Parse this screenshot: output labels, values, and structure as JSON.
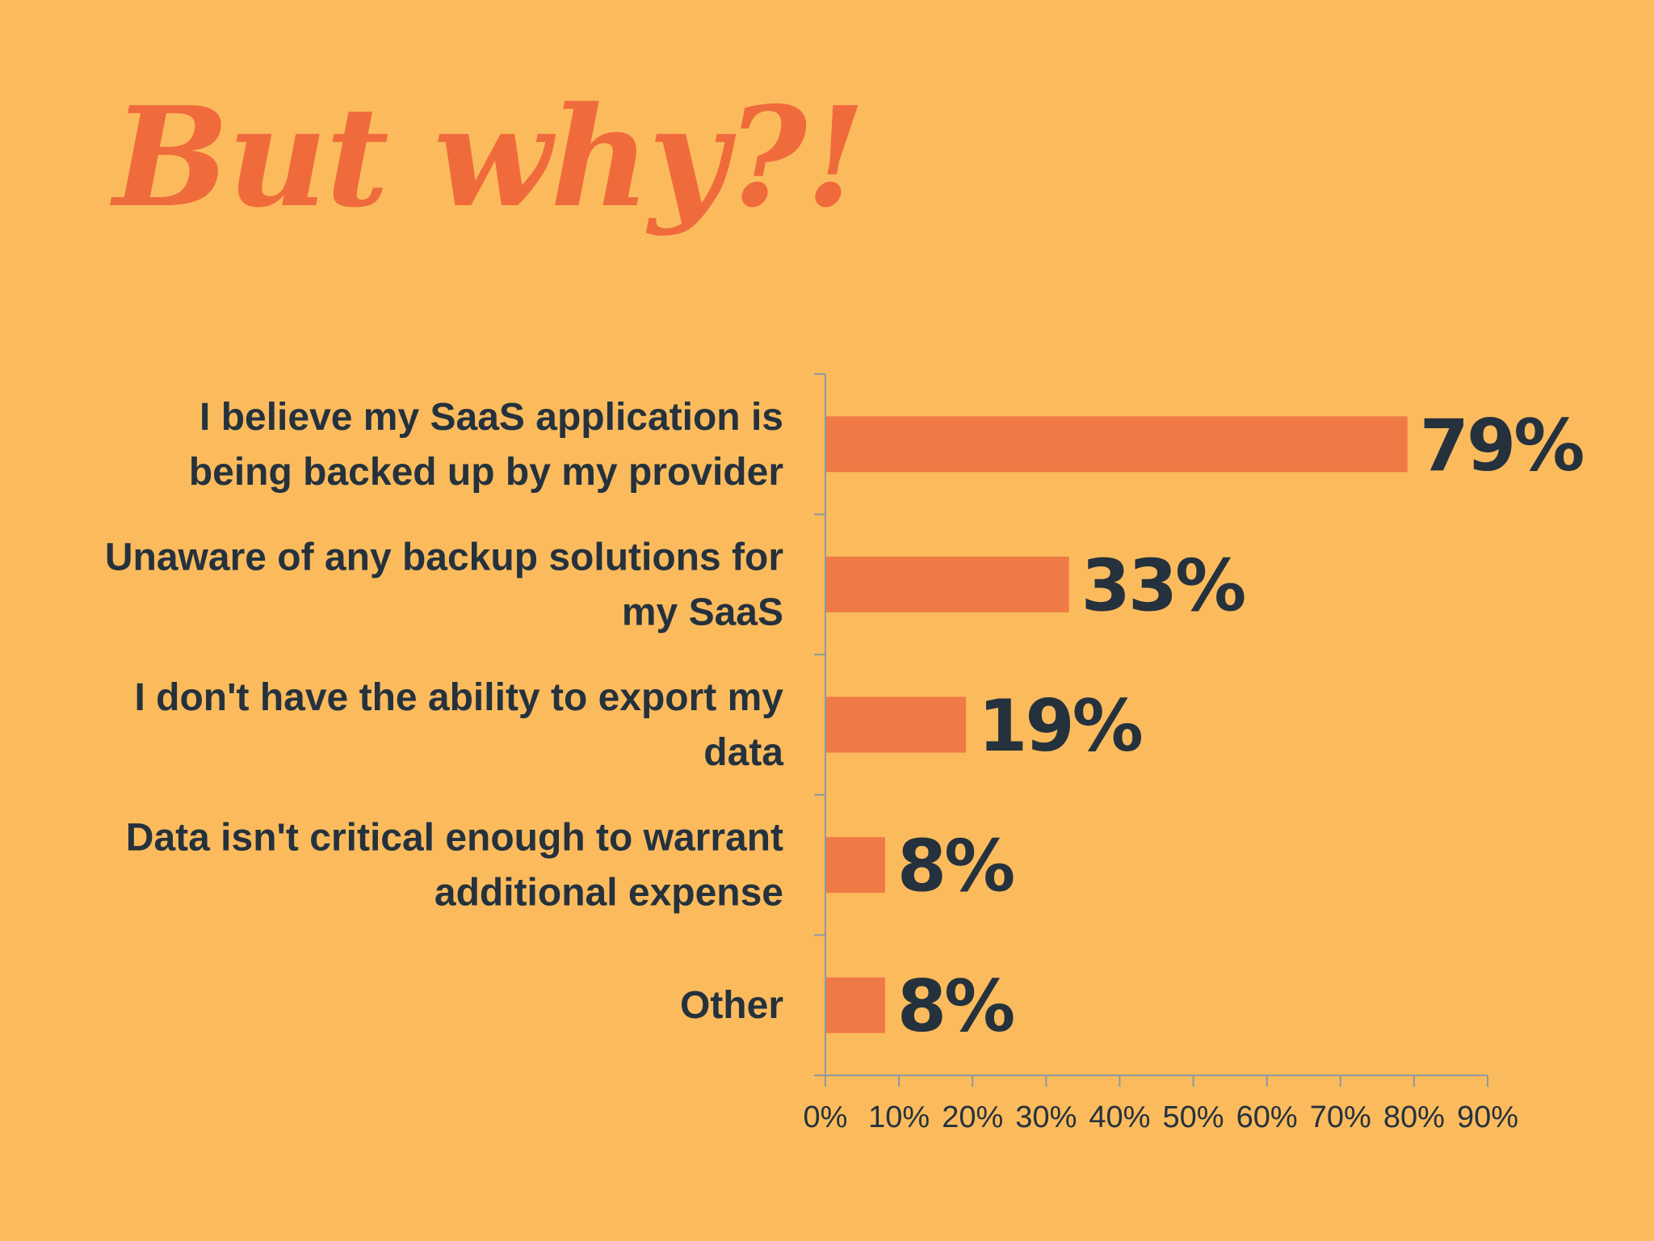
{
  "title": "But why?!",
  "colors": {
    "background": "#fbbb5d",
    "title": "#ef6b3c",
    "bar": "#f07a45",
    "text": "#25323d",
    "axis": "#8c99a0"
  },
  "chart_data": {
    "type": "bar",
    "orientation": "horizontal",
    "title": "",
    "xlabel": "",
    "ylabel": "",
    "categories": [
      [
        "I believe my SaaS application is",
        "being backed up by my provider"
      ],
      [
        "Unaware of any backup solutions for",
        "my SaaS"
      ],
      [
        "I don't have the ability to export my",
        "data"
      ],
      [
        "Data isn't critical enough to warrant",
        "additional expense"
      ],
      [
        "Other"
      ]
    ],
    "values": [
      79,
      33,
      19,
      8,
      8
    ],
    "data_labels": [
      "79%",
      "33%",
      "19%",
      "8%",
      "8%"
    ],
    "xlim": [
      0,
      90
    ],
    "x_ticks": [
      0,
      10,
      20,
      30,
      40,
      50,
      60,
      70,
      80,
      90
    ],
    "x_tick_labels": [
      "0%",
      "10%",
      "20%",
      "30%",
      "40%",
      "50%",
      "60%",
      "70%",
      "80%",
      "90%"
    ],
    "grid": false,
    "legend": "none"
  }
}
